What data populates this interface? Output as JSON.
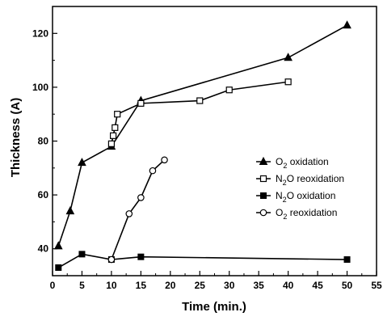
{
  "chart_data": {
    "type": "line",
    "title": "",
    "xlabel": "Time (min.)",
    "ylabel": "Thickness (A)",
    "xlim": [
      0,
      55
    ],
    "ylim": [
      30,
      130
    ],
    "xticks": [
      0,
      5,
      10,
      15,
      20,
      25,
      30,
      35,
      40,
      45,
      50,
      55
    ],
    "yticks": [
      40,
      60,
      80,
      100,
      120
    ],
    "grid": false,
    "legend_position": "right",
    "series": [
      {
        "name": "O₂ oxidation",
        "name_parts": [
          "O",
          "2",
          " oxidation"
        ],
        "marker": "filled-triangle",
        "x": [
          1,
          3,
          5,
          10,
          15,
          40,
          50
        ],
        "y": [
          41,
          54,
          72,
          78,
          95,
          111,
          123
        ]
      },
      {
        "name": "N₂O reoxidation",
        "name_parts": [
          "N",
          "2",
          "O reoxidation"
        ],
        "marker": "open-square",
        "x": [
          10,
          10.3,
          10.6,
          11,
          15,
          25,
          30,
          40
        ],
        "y": [
          79,
          82,
          85,
          90,
          94,
          95,
          99,
          102
        ]
      },
      {
        "name": "N₂O oxidation",
        "name_parts": [
          "N",
          "2",
          "O oxidation"
        ],
        "marker": "filled-square",
        "x": [
          1,
          5,
          10,
          15,
          50
        ],
        "y": [
          33,
          38,
          36,
          37,
          36
        ]
      },
      {
        "name": "O₂ reoxidation",
        "name_parts": [
          "O",
          "2",
          " reoxidation"
        ],
        "marker": "open-circle",
        "x": [
          10,
          13,
          15,
          17,
          19
        ],
        "y": [
          36,
          53,
          59,
          69,
          73
        ]
      }
    ]
  }
}
